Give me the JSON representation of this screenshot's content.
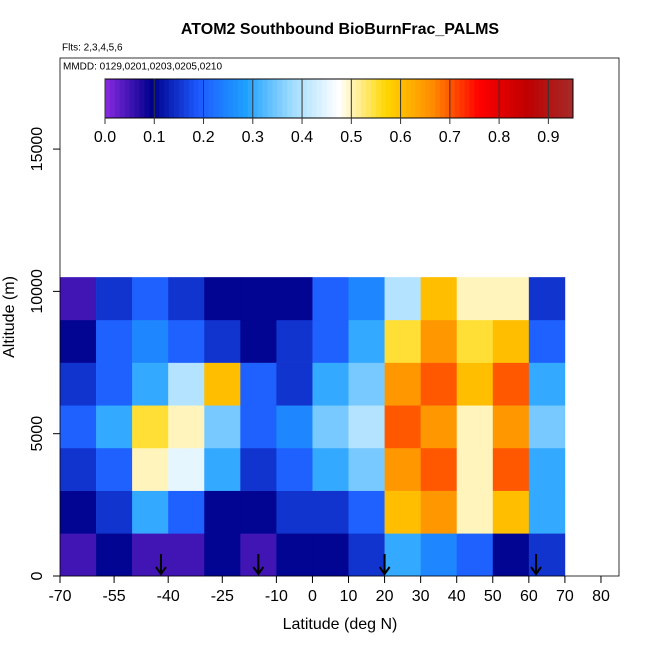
{
  "chart_data": {
    "type": "heatmap",
    "title": "ATOM2 Southbound BioBurnFrac_PALMS",
    "subtitle": "Flts: 2,3,4,5,6",
    "annotation": "MMDD: 0129,0201,0203,0205,0210",
    "x_label": "Latitude (deg N)",
    "y_label": "Altitude (m)",
    "x_edges": [
      -70,
      -60,
      -50,
      -40,
      -30,
      -20,
      -10,
      0,
      10,
      20,
      30,
      40,
      50,
      60,
      70
    ],
    "y_edges": [
      0,
      1500,
      3000,
      4500,
      6000,
      7500,
      9000,
      10500
    ],
    "z": [
      [
        0.05,
        0.1,
        0.05,
        0.05,
        0.1,
        0.05,
        0.1,
        0.1,
        0.15,
        0.3,
        0.25,
        0.2,
        0.1,
        0.15
      ],
      [
        0.1,
        0.15,
        0.3,
        0.2,
        0.1,
        0.1,
        0.15,
        0.15,
        0.2,
        0.6,
        0.65,
        0.5,
        0.6,
        0.3
      ],
      [
        0.15,
        0.2,
        0.5,
        0.45,
        0.3,
        0.15,
        0.2,
        0.3,
        0.35,
        0.65,
        0.7,
        0.5,
        0.7,
        0.3
      ],
      [
        0.2,
        0.3,
        0.55,
        0.5,
        0.35,
        0.2,
        0.25,
        0.35,
        0.4,
        0.7,
        0.65,
        0.5,
        0.65,
        0.35
      ],
      [
        0.15,
        0.2,
        0.3,
        0.4,
        0.6,
        0.2,
        0.15,
        0.3,
        0.35,
        0.65,
        0.7,
        0.6,
        0.7,
        0.3
      ],
      [
        0.1,
        0.2,
        0.25,
        0.2,
        0.15,
        0.1,
        0.15,
        0.2,
        0.3,
        0.55,
        0.65,
        0.55,
        0.6,
        0.2
      ],
      [
        0.05,
        0.15,
        0.2,
        0.15,
        0.1,
        0.1,
        0.1,
        0.2,
        0.25,
        0.4,
        0.6,
        0.5,
        0.5,
        0.15
      ]
    ],
    "markers_x": [
      -42,
      -15,
      20,
      62
    ],
    "xlim": [
      -70,
      85
    ],
    "ylim": [
      0,
      18200
    ],
    "xticks": [
      -70,
      -55,
      -40,
      -25,
      -10,
      0,
      10,
      20,
      30,
      40,
      50,
      60,
      70,
      80
    ],
    "yticks": [
      0,
      5000,
      10000,
      15000
    ],
    "clim": [
      0,
      0.95
    ],
    "cticks": [
      {
        "value": 0,
        "label": "0.0"
      },
      0.1,
      0.2,
      0.3,
      0.4,
      0.5,
      0.6,
      0.7,
      0.8,
      0.9
    ],
    "colorscale": [
      "#8a2be2",
      "#00008b",
      "#1e5aff",
      "#1ea0ff",
      "#a0dcff",
      "#ffffff",
      "#ffd700",
      "#ff8c00",
      "#ff0000",
      "#c00000",
      "#a52a2a"
    ]
  }
}
